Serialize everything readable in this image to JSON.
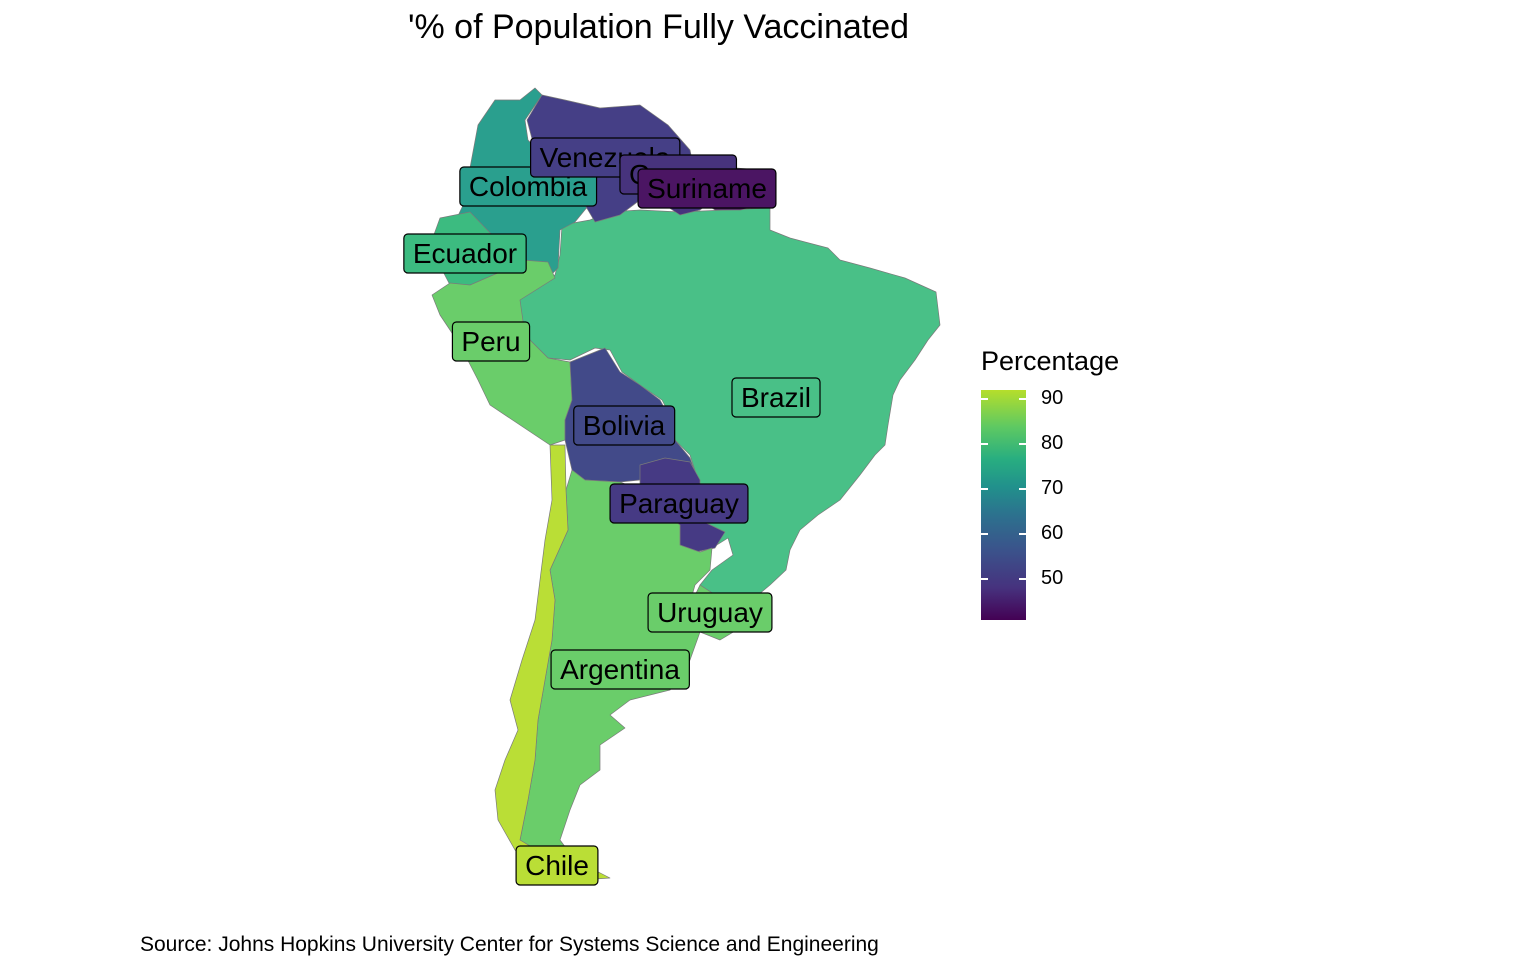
{
  "title": "'% of Population Fully Vaccinated",
  "caption": "Source: Johns Hopkins University Center for Systems Science and Engineering",
  "legend": {
    "title": "Percentage",
    "ticks": [
      "90",
      "80",
      "70",
      "60",
      "50"
    ],
    "colors": [
      "#440154",
      "#46327e",
      "#3b528b",
      "#2c728e",
      "#21918c",
      "#28ae80",
      "#5ec962",
      "#b5de2b"
    ]
  },
  "countries": [
    {
      "name": "Colombia",
      "value": 71,
      "color": "#2a9f8e"
    },
    {
      "name": "Venezuela",
      "value": 50,
      "color": "#453f86"
    },
    {
      "name": "Guyana",
      "value": 47,
      "color": "#47337d"
    },
    {
      "name": "Suriname",
      "value": 43,
      "color": "#4b1563"
    },
    {
      "name": "Ecuador",
      "value": 78,
      "color": "#3cbb80"
    },
    {
      "name": "Peru",
      "value": 84,
      "color": "#6acd6a"
    },
    {
      "name": "Brazil",
      "value": 79,
      "color": "#49c087"
    },
    {
      "name": "Bolivia",
      "value": 51,
      "color": "#424a89"
    },
    {
      "name": "Paraguay",
      "value": 49,
      "color": "#463a84"
    },
    {
      "name": "Uruguay",
      "value": 84,
      "color": "#6acd6a"
    },
    {
      "name": "Argentina",
      "value": 84,
      "color": "#6acd6a"
    },
    {
      "name": "Chile",
      "value": 92,
      "color": "#bade36"
    }
  ]
}
